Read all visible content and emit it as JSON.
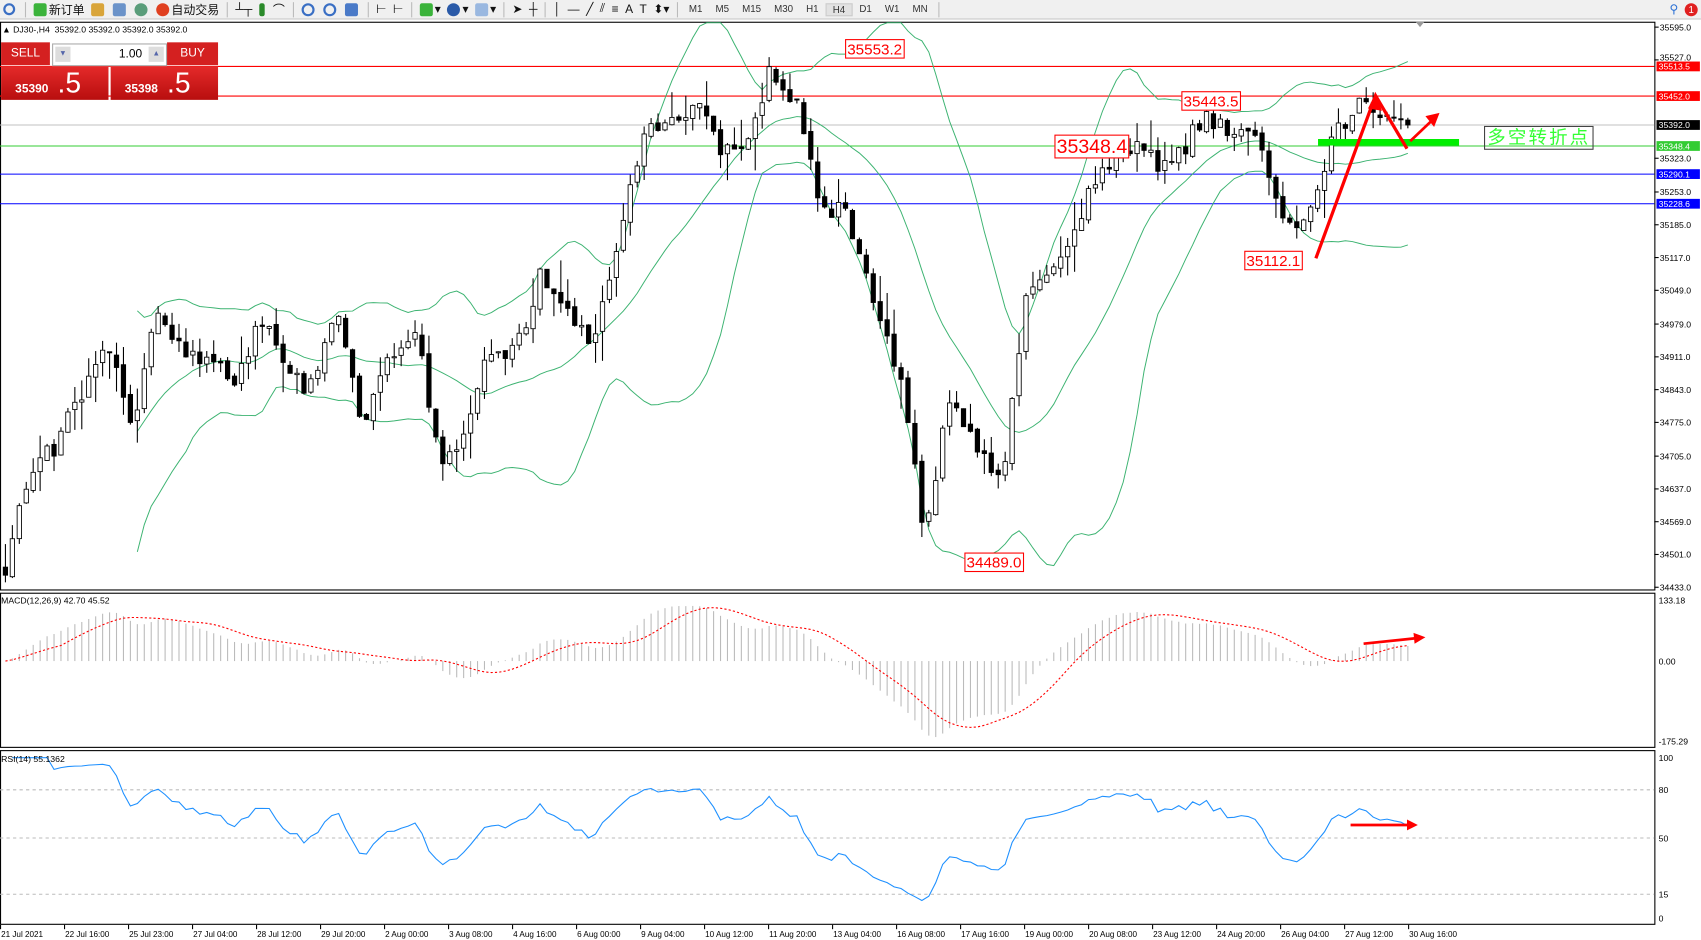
{
  "toolbar": {
    "new_order": "新订单",
    "auto_trading": "自动交易",
    "timeframes": [
      "M1",
      "M5",
      "M15",
      "M30",
      "H1",
      "H4",
      "D1",
      "W1",
      "MN"
    ],
    "active_timeframe": "H4",
    "notification_count": "1"
  },
  "chart_header": {
    "symbol": "DJ30-,H4",
    "ohlc": "35392.0 35392.0 35392.0 35392.0"
  },
  "trade_panel": {
    "sell_label": "SELL",
    "buy_label": "BUY",
    "lots": "1.00",
    "sell_price_main": "35390",
    "sell_price_frac": ".5",
    "buy_price_main": "35398",
    "buy_price_frac": ".5"
  },
  "price_axis": {
    "ticks": [
      "35595.0",
      "35527.0",
      "35323.0",
      "35253.0",
      "35185.0",
      "35117.0",
      "35049.0",
      "34979.0",
      "34911.0",
      "34843.0",
      "34775.0",
      "34705.0",
      "34637.0",
      "34569.0",
      "34501.0",
      "34433.0"
    ]
  },
  "horizontal_lines": [
    {
      "value": "35513.5",
      "color": "#ff0000"
    },
    {
      "value": "35452.0",
      "color": "#ff0000"
    },
    {
      "value": "35392.0",
      "color": "#000000",
      "line_color": "#c0c0c0"
    },
    {
      "value": "35348.4",
      "color": "#33cc33"
    },
    {
      "value": "35290.1",
      "color": "#0000ff"
    },
    {
      "value": "35228.6",
      "color": "#0000ff"
    }
  ],
  "annotations": {
    "high_label": "35553.2",
    "swing_high_label": "35443.5",
    "pivot_label": "35348.4",
    "swing_low_label": "35112.1",
    "low_label": "34489.0",
    "turning_point_text": "多空转折点"
  },
  "macd": {
    "label": "MACD(12,26,9) 42.70 45.52",
    "ticks": [
      "133.18",
      "0.00",
      "-175.29"
    ]
  },
  "rsi": {
    "label": "RSI(14) 55.1362",
    "ticks": [
      "100",
      "80",
      "50",
      "15",
      "0"
    ]
  },
  "time_axis": [
    "21 Jul 2021",
    "22 Jul 16:00",
    "25 Jul 23:00",
    "27 Jul 04:00",
    "28 Jul 12:00",
    "29 Jul 20:00",
    "2 Aug 00:00",
    "3 Aug 08:00",
    "4 Aug 16:00",
    "6 Aug 00:00",
    "9 Aug 04:00",
    "10 Aug 12:00",
    "11 Aug 20:00",
    "13 Aug 04:00",
    "16 Aug 08:00",
    "17 Aug 16:00",
    "19 Aug 00:00",
    "20 Aug 08:00",
    "23 Aug 12:00",
    "24 Aug 20:00",
    "26 Aug 04:00",
    "27 Aug 12:00",
    "30 Aug 16:00"
  ],
  "chart": {
    "type": "candlestick",
    "price_range": [
      34433.0,
      35595.0
    ],
    "last_price": 35392.0,
    "approx_close_path": [
      34480,
      34683,
      34728,
      34840,
      34942,
      34773,
      35021,
      34908,
      34908,
      34840,
      34998,
      34863,
      34852,
      34998,
      34750,
      34908,
      34975,
      34706,
      34750,
      34930,
      34930,
      35088,
      34998,
      34953,
      35145,
      35370,
      35404,
      35437,
      35336,
      35358,
      35516,
      35426,
      35223,
      35201,
      35021,
      34886,
      34548,
      34840,
      34728,
      34638,
      35043,
      35088,
      35201,
      35313,
      35347,
      35313,
      35324,
      35426,
      35358,
      35381,
      35178,
      35201,
      35381,
      35437,
      35404,
      35392
    ],
    "indicators": [
      "Bollinger Bands",
      "MACD(12,26,9)",
      "RSI(14)"
    ],
    "colors": {
      "bands": "#3cb371",
      "macd_histogram": "#bbbbbb",
      "macd_signal": "#ff0000",
      "rsi": "#1e90ff",
      "arrows": "#ff0000",
      "pivot_bar": "#00ee00"
    }
  }
}
